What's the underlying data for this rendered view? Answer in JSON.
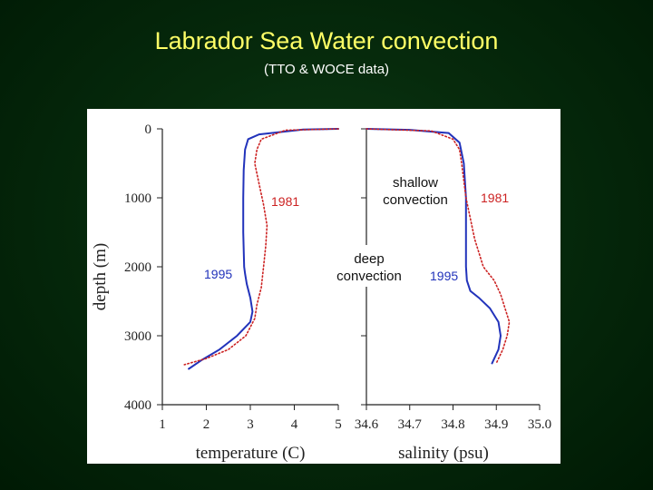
{
  "slide": {
    "title": "Labrador Sea Water convection",
    "subtitle": "(TTO & WOCE data)"
  },
  "colors": {
    "series_1995": "#2233bb",
    "series_1981": "#cc2222",
    "title": "#ffff66",
    "background": "#062a0c"
  },
  "chart_data": [
    {
      "type": "line",
      "xlabel": "temperature (C)",
      "ylabel": "depth (m)",
      "xlim": [
        1,
        5
      ],
      "ylim": [
        4000,
        0
      ],
      "xticks": [
        "1",
        "2",
        "3",
        "4",
        "5"
      ],
      "yticks": [
        "0",
        "1000",
        "2000",
        "3000",
        "4000"
      ],
      "grid": false,
      "annotations": [],
      "series": [
        {
          "name": "1995",
          "style": "solid",
          "color": "#2233bb",
          "points": [
            [
              5.0,
              0
            ],
            [
              4.2,
              10
            ],
            [
              3.2,
              80
            ],
            [
              2.95,
              150
            ],
            [
              2.88,
              300
            ],
            [
              2.85,
              600
            ],
            [
              2.84,
              1000
            ],
            [
              2.84,
              1500
            ],
            [
              2.86,
              2000
            ],
            [
              2.88,
              2100
            ],
            [
              2.92,
              2250
            ],
            [
              3.0,
              2450
            ],
            [
              3.05,
              2650
            ],
            [
              3.0,
              2800
            ],
            [
              2.7,
              3000
            ],
            [
              2.3,
              3200
            ],
            [
              1.9,
              3350
            ],
            [
              1.6,
              3480
            ]
          ]
        },
        {
          "name": "1981",
          "style": "dotted",
          "color": "#cc2222",
          "points": [
            [
              5.0,
              0
            ],
            [
              3.8,
              20
            ],
            [
              3.25,
              150
            ],
            [
              3.15,
              300
            ],
            [
              3.1,
              500
            ],
            [
              3.2,
              800
            ],
            [
              3.3,
              1100
            ],
            [
              3.38,
              1400
            ],
            [
              3.35,
              1700
            ],
            [
              3.3,
              2000
            ],
            [
              3.25,
              2300
            ],
            [
              3.15,
              2550
            ],
            [
              3.1,
              2750
            ],
            [
              2.9,
              3000
            ],
            [
              2.5,
              3200
            ],
            [
              2.0,
              3330
            ],
            [
              1.5,
              3420
            ]
          ]
        }
      ]
    },
    {
      "type": "line",
      "xlabel": "salinity (psu)",
      "ylabel": "",
      "xlim": [
        34.6,
        35.0
      ],
      "ylim": [
        4000,
        0
      ],
      "xticks": [
        "34.6",
        "34.7",
        "34.8",
        "34.9",
        "35.0"
      ],
      "yticks": [],
      "grid": false,
      "annotations": [
        "shallow convection",
        "deep convection"
      ],
      "series": [
        {
          "name": "1995",
          "style": "solid",
          "color": "#2233bb",
          "points": [
            [
              34.6,
              0
            ],
            [
              34.7,
              15
            ],
            [
              34.79,
              60
            ],
            [
              34.815,
              200
            ],
            [
              34.825,
              500
            ],
            [
              34.83,
              1000
            ],
            [
              34.83,
              1500
            ],
            [
              34.83,
              2000
            ],
            [
              34.832,
              2200
            ],
            [
              34.84,
              2350
            ],
            [
              34.86,
              2450
            ],
            [
              34.885,
              2600
            ],
            [
              34.905,
              2800
            ],
            [
              34.91,
              3000
            ],
            [
              34.905,
              3200
            ],
            [
              34.89,
              3400
            ]
          ]
        },
        {
          "name": "1981",
          "style": "dotted",
          "color": "#cc2222",
          "points": [
            [
              34.6,
              0
            ],
            [
              34.75,
              30
            ],
            [
              34.8,
              150
            ],
            [
              34.815,
              300
            ],
            [
              34.82,
              500
            ],
            [
              34.83,
              1000
            ],
            [
              34.84,
              1300
            ],
            [
              34.85,
              1600
            ],
            [
              34.87,
              2000
            ],
            [
              34.895,
              2200
            ],
            [
              34.91,
              2400
            ],
            [
              34.92,
              2600
            ],
            [
              34.93,
              2800
            ],
            [
              34.925,
              3000
            ],
            [
              34.915,
              3200
            ],
            [
              34.9,
              3400
            ]
          ]
        }
      ]
    }
  ]
}
